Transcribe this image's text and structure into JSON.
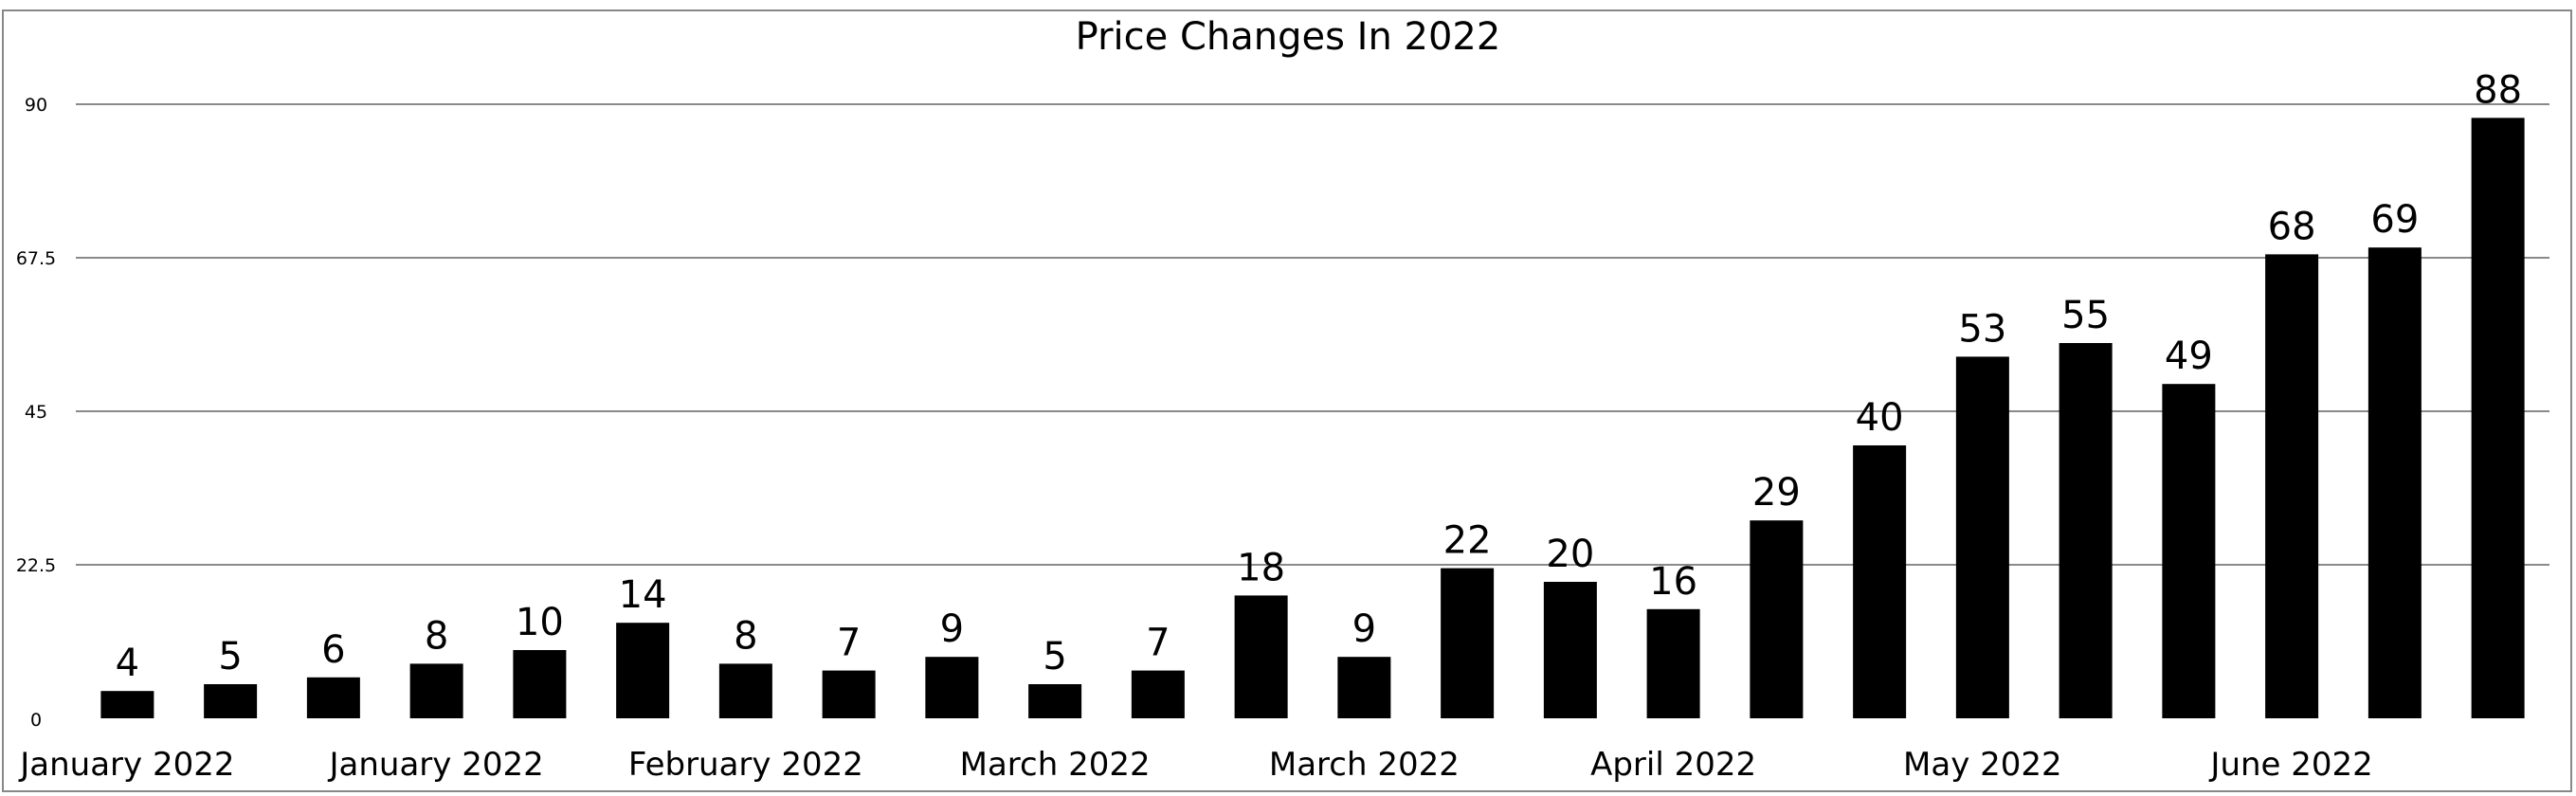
{
  "chart_data": {
    "type": "bar",
    "title": "Price Changes In 2022",
    "xlabel": "",
    "ylabel": "",
    "ylim": [
      0,
      90
    ],
    "yticks": [
      "0",
      "22.5",
      "45",
      "67.5",
      "90"
    ],
    "grid": true,
    "bar_color": "#000000",
    "x_tick_labels": [
      "January 2022",
      "January 2022",
      "February 2022",
      "March 2022",
      "March 2022",
      "April 2022",
      "May 2022",
      "June 2022"
    ],
    "values": [
      4,
      5,
      6,
      8,
      10,
      14,
      8,
      7,
      9,
      5,
      7,
      18,
      9,
      22,
      20,
      16,
      29,
      40,
      53,
      55,
      49,
      68,
      69,
      88
    ]
  }
}
